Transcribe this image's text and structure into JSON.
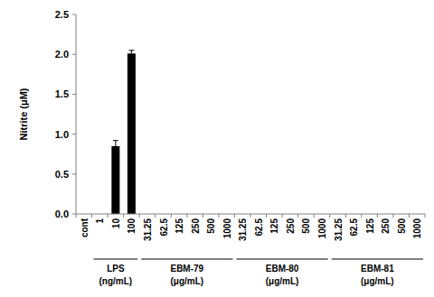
{
  "chart_data": {
    "type": "bar",
    "y_label": "Nitrite (μM)",
    "categories": [
      "cont",
      "1",
      "10",
      "100",
      "31.25",
      "62.5",
      "125",
      "250",
      "500",
      "1000",
      "31.25",
      "62.5",
      "125",
      "250",
      "500",
      "1000",
      "31.25",
      "62.5",
      "125",
      "250",
      "500",
      "1000"
    ],
    "values": [
      0,
      0,
      0.85,
      2.01,
      0,
      0,
      0,
      0,
      0,
      0,
      0,
      0,
      0,
      0,
      0,
      0,
      0,
      0,
      0,
      0,
      0,
      0
    ],
    "errors": [
      null,
      null,
      0.07,
      0.04,
      null,
      null,
      null,
      null,
      null,
      null,
      null,
      null,
      null,
      null,
      null,
      null,
      null,
      null,
      null,
      null,
      null,
      null
    ],
    "groups": [
      {
        "name": "LPS",
        "unit": "(ng/mL)",
        "from": 1,
        "to": 3
      },
      {
        "name": "EBM-79",
        "unit": "(μg/mL)",
        "from": 4,
        "to": 9
      },
      {
        "name": "EBM-80",
        "unit": "(μg/mL)",
        "from": 10,
        "to": 15
      },
      {
        "name": "EBM-81",
        "unit": "(μg/mL)",
        "from": 16,
        "to": 21
      }
    ],
    "color": "#000000",
    "ylim": [
      0,
      2.5
    ],
    "yticks": [
      {
        "value": 0,
        "label": "0.0"
      },
      {
        "value": 0.5,
        "label": "0.5"
      },
      {
        "value": 1,
        "label": "1.0"
      },
      {
        "value": 1.5,
        "label": "1.5"
      },
      {
        "value": 2,
        "label": "2.0"
      },
      {
        "value": 2.5,
        "label": "2.5"
      }
    ],
    "grid": false
  }
}
